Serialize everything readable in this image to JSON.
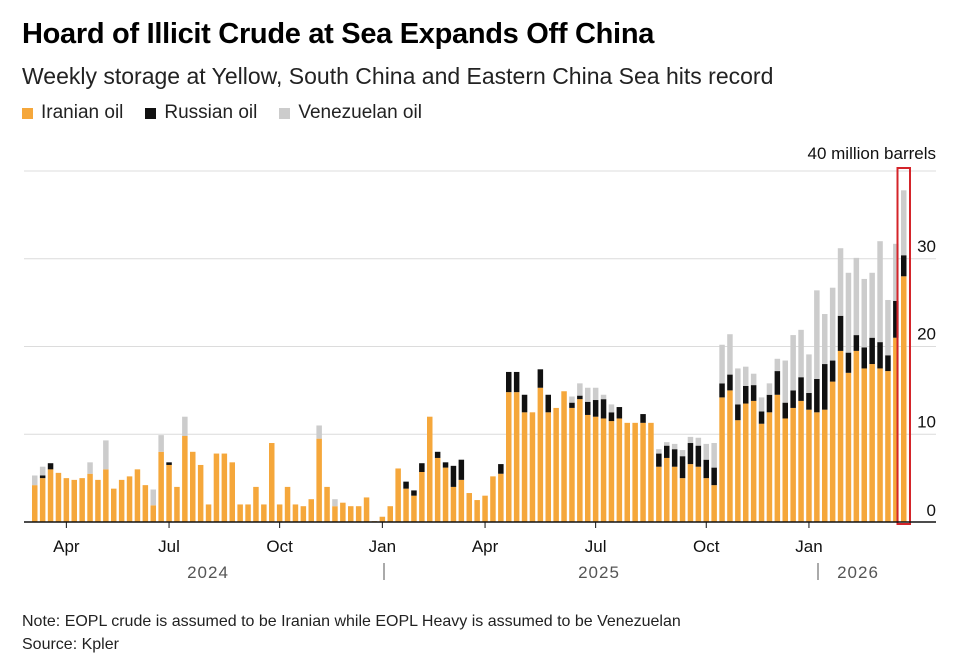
{
  "colors": {
    "iranian": "#f5a73b",
    "russian": "#111111",
    "venezuelan": "#cccccc",
    "grid": "#dcdcdc",
    "highlight": "#d4242a"
  },
  "footer": {
    "note": "Note: EOPL crude is assumed to be Iranian while EOPL Heavy is assumed to be Venezuelan",
    "source": "Source: Kpler"
  },
  "chart_data": {
    "type": "bar",
    "stacked": true,
    "title": "Hoard of Illicit Crude at Sea Expands Off China",
    "subtitle": "Weekly storage at Yellow, South China and Eastern China Sea hits record",
    "unit_label": "40 million barrels",
    "ylim": [
      0,
      40
    ],
    "yticks": [
      "0",
      "10",
      "20",
      "30"
    ],
    "grid": true,
    "legend_position": "top-left",
    "month_labels": [
      "Apr",
      "Jul",
      "Oct",
      "Jan",
      "Apr",
      "Jul",
      "Oct",
      "Jan"
    ],
    "year_labels": [
      "2024",
      "2025",
      "2026"
    ],
    "highlight_last": true,
    "series": [
      {
        "name": "Iranian oil",
        "color": "#f5a73b",
        "values": [
          4.2,
          5.0,
          6.0,
          5.6,
          5.0,
          4.8,
          5.0,
          5.5,
          4.8,
          6.0,
          3.8,
          4.8,
          5.2,
          6.0,
          4.2,
          1.9,
          8.0,
          6.5,
          4.0,
          9.8,
          8.0,
          6.5,
          2.0,
          7.8,
          7.8,
          6.8,
          2.0,
          2.0,
          4.0,
          2.0,
          9.0,
          2.0,
          4.0,
          2.0,
          1.8,
          2.6,
          9.5,
          4.0,
          1.8,
          2.2,
          1.8,
          1.8,
          2.8,
          0.1,
          0.6,
          1.8,
          6.1,
          3.8,
          3.0,
          5.7,
          12.0,
          7.3,
          6.2,
          4.0,
          4.8,
          3.3,
          2.5,
          3.0,
          5.2,
          5.5,
          14.8,
          14.8,
          12.5,
          12.5,
          15.3,
          12.5,
          13.0,
          14.9,
          13.0,
          14.0,
          12.2,
          12.0,
          11.8,
          11.5,
          11.8,
          11.3,
          11.3,
          11.3,
          11.3,
          6.3,
          7.3,
          6.3,
          5.0,
          6.6,
          6.3,
          5.0,
          4.2,
          14.2,
          15.0,
          11.6,
          13.5,
          13.8,
          11.2,
          12.5,
          14.5,
          11.8,
          13.0,
          13.8,
          12.8,
          12.5,
          12.8,
          16.0,
          19.5,
          17.0,
          19.5,
          17.5,
          18.0,
          17.5,
          17.2,
          21.0,
          28.0
        ]
      },
      {
        "name": "Russian oil",
        "color": "#111111",
        "values": [
          0,
          0.3,
          0.7,
          0,
          0,
          0,
          0,
          0,
          0,
          0,
          0,
          0,
          0,
          0,
          0,
          0,
          0,
          0.3,
          0,
          0,
          0,
          0,
          0,
          0,
          0,
          0,
          0,
          0,
          0,
          0,
          0,
          0,
          0,
          0,
          0,
          0,
          0,
          0,
          0,
          0,
          0,
          0,
          0,
          0,
          0,
          0,
          0,
          0.8,
          0.6,
          1.0,
          0,
          0.7,
          0.6,
          2.4,
          2.3,
          0,
          0,
          0,
          0,
          1.1,
          2.3,
          2.3,
          2.0,
          0,
          2.1,
          2.0,
          0,
          0,
          0.6,
          0.4,
          1.5,
          1.9,
          2.2,
          1.0,
          1.3,
          0,
          0,
          1.0,
          0,
          1.5,
          1.4,
          2.0,
          2.5,
          2.4,
          2.4,
          2.1,
          2.0,
          1.6,
          1.8,
          1.8,
          2.0,
          1.8,
          1.4,
          2.0,
          2.7,
          1.8,
          2.0,
          2.7,
          1.9,
          3.8,
          5.2,
          2.4,
          4.0,
          2.3,
          1.8,
          2.4,
          3.0,
          3.0,
          1.8,
          4.2,
          2.4
        ]
      },
      {
        "name": "Venezuelan oil",
        "color": "#cccccc",
        "values": [
          1.1,
          1.0,
          0,
          0,
          0,
          0,
          0,
          1.3,
          0,
          3.3,
          0,
          0,
          0,
          0,
          0,
          1.8,
          1.9,
          0,
          0,
          2.2,
          0,
          0,
          0,
          0,
          0,
          0,
          0,
          0,
          0,
          0,
          0,
          0,
          0,
          0,
          0,
          0,
          1.5,
          0,
          0.8,
          0,
          0,
          0,
          0,
          0,
          0,
          0,
          0,
          0,
          0,
          0,
          0,
          0,
          0,
          0,
          0,
          0,
          0,
          0,
          0,
          0,
          0,
          0,
          0,
          0,
          0,
          0,
          0,
          0,
          0.7,
          1.4,
          1.6,
          1.4,
          0.5,
          0.9,
          0,
          0,
          0,
          0,
          0,
          0.5,
          0.4,
          0.6,
          0.7,
          0.7,
          0.9,
          1.8,
          2.8,
          4.4,
          4.6,
          4.1,
          2.2,
          1.3,
          1.6,
          1.3,
          1.4,
          4.8,
          6.3,
          5.4,
          4.4,
          10.1,
          5.7,
          8.3,
          7.7,
          9.1,
          8.8,
          7.8,
          7.4,
          11.5,
          6.3,
          6.5,
          7.4
        ]
      }
    ]
  }
}
